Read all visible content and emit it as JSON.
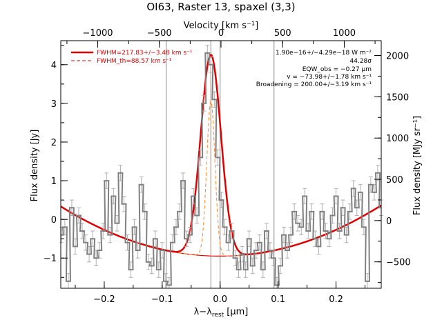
{
  "chart_data": {
    "type": "line",
    "title": "OI63, Raster 13, spaxel (3,3)",
    "xlabel": "λ−λ_rest [μm]",
    "xlabel_main": "λ−λ",
    "xlabel_sub": "rest",
    "xlabel_unit": " [μm]",
    "top_xlabel": "Velocity [km s⁻¹]",
    "ylabel": "Flux density [Jy]",
    "right_ylabel": "Flux density [MJy sr⁻¹]",
    "xlim": [
      -0.275,
      0.278
    ],
    "ylim": [
      -1.78,
      4.62
    ],
    "top_xlim": [
      -1300,
      1300
    ],
    "right_ylim": [
      -820,
      2180
    ],
    "x_ticks": [
      -0.2,
      -0.1,
      0.0,
      0.1,
      0.2
    ],
    "x_tick_labels": [
      "−0.2",
      "−0.1",
      "0.0",
      "0.1",
      "0.2"
    ],
    "y_ticks": [
      -1,
      0,
      1,
      2,
      3,
      4
    ],
    "y_tick_labels": [
      "−1",
      "0",
      "1",
      "2",
      "3",
      "4"
    ],
    "top_ticks": [
      -1000,
      -500,
      0,
      500,
      1000
    ],
    "top_tick_labels": [
      "−1000",
      "−500",
      "0",
      "500",
      "1000"
    ],
    "right_ticks": [
      -500,
      0,
      500,
      1000,
      1500,
      2000
    ],
    "right_tick_labels": [
      "−500",
      "0",
      "500",
      "1000",
      "1500",
      "2000"
    ],
    "vlines_x": [
      -0.093,
      -0.016,
      0.0,
      0.093
    ],
    "legend": [
      {
        "label": "FWHM=217.83+/−3.48 km s⁻¹",
        "color": "#e00000",
        "style": "solid"
      },
      {
        "label": "FWHM_th=88.57 km s⁻¹",
        "color": "#e00000",
        "style": "dashed"
      }
    ],
    "annotations": [
      "1.90e−16+/−4.29e−18 W m⁻²",
      "44.28σ",
      "EQW_obs = −0.27 μm",
      "v = −73.98+/−1.78 km s⁻¹",
      "Broadening = 200.00+/−3.19 km s⁻¹"
    ],
    "model": {
      "continuum_center": 0.0,
      "continuum_min": -0.95,
      "continuum_curvature": 17.0,
      "line_center": -0.016,
      "line_peak": 5.2,
      "line_fwhm": 0.041,
      "instrumental_fwhm": 0.0167,
      "instrumental_peak": 4.0
    },
    "series": [
      {
        "name": "data",
        "color": "#808080",
        "error": 0.2,
        "x": [
          -0.274,
          -0.268,
          -0.262,
          -0.256,
          -0.25,
          -0.244,
          -0.238,
          -0.232,
          -0.226,
          -0.22,
          -0.214,
          -0.208,
          -0.202,
          -0.196,
          -0.19,
          -0.184,
          -0.178,
          -0.172,
          -0.166,
          -0.16,
          -0.154,
          -0.148,
          -0.142,
          -0.136,
          -0.13,
          -0.124,
          -0.118,
          -0.112,
          -0.106,
          -0.1,
          -0.094,
          -0.088,
          -0.082,
          -0.076,
          -0.07,
          -0.064,
          -0.058,
          -0.052,
          -0.046,
          -0.04,
          -0.034,
          -0.028,
          -0.022,
          -0.016,
          -0.01,
          -0.004,
          0.002,
          0.008,
          0.014,
          0.02,
          0.026,
          0.032,
          0.038,
          0.044,
          0.05,
          0.056,
          0.062,
          0.068,
          0.074,
          0.08,
          0.086,
          0.092,
          0.098,
          0.104,
          0.11,
          0.116,
          0.122,
          0.128,
          0.134,
          0.14,
          0.146,
          0.152,
          0.158,
          0.164,
          0.17,
          0.176,
          0.182,
          0.188,
          0.194,
          0.2,
          0.206,
          0.212,
          0.218,
          0.224,
          0.23,
          0.236,
          0.242,
          0.248,
          0.254,
          0.26,
          0.266,
          0.272,
          0.278
        ],
        "y": [
          -0.4,
          -0.2,
          -1.6,
          0.3,
          -0.7,
          0.1,
          -0.3,
          -0.6,
          -0.9,
          -0.5,
          -1.0,
          -0.8,
          -0.3,
          1.0,
          -0.4,
          0.6,
          -0.1,
          1.2,
          0.4,
          -0.6,
          -1.3,
          -0.2,
          -0.8,
          0.9,
          0.2,
          -1.1,
          -1.2,
          -0.5,
          -1.3,
          -0.8,
          -1.6,
          -1.7,
          -0.6,
          -0.2,
          0.2,
          1.0,
          -0.5,
          -0.4,
          0.6,
          0.1,
          1.6,
          3.0,
          4.3,
          4.0,
          3.1,
          1.6,
          0.5,
          -0.2,
          -0.6,
          -0.3,
          -1.0,
          -1.3,
          -0.9,
          -1.3,
          -0.5,
          -1.2,
          -0.8,
          -0.6,
          -1.3,
          -0.3,
          -0.8,
          -1.0,
          -1.7,
          -1.2,
          -0.4,
          -0.8,
          -0.4,
          0.2,
          -0.1,
          -0.2,
          0.6,
          -0.3,
          0.2,
          -0.5,
          -0.7,
          0.2,
          -0.3,
          -0.5,
          0.1,
          0.6,
          -0.3,
          0.3,
          -0.4,
          0.2,
          0.8,
          0.3,
          0.7,
          -0.2,
          -1.6,
          0.9,
          0.7,
          1.2,
          0.3
        ]
      }
    ]
  }
}
